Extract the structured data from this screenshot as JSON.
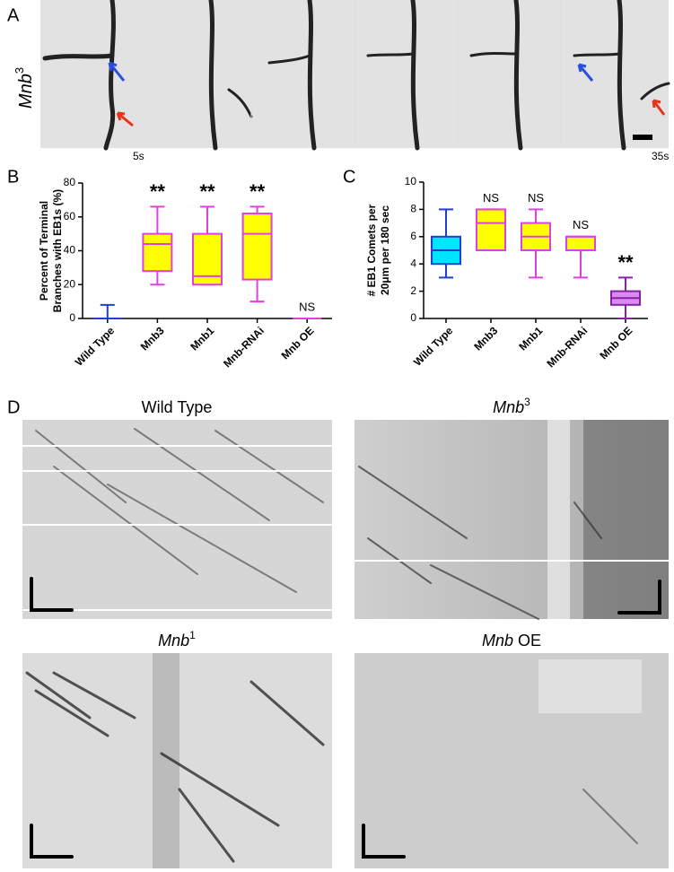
{
  "panels": {
    "a": "A",
    "b": "B",
    "c": "C",
    "d": "D"
  },
  "figure_a": {
    "genotype": "Mnb",
    "genotype_superscript": "3",
    "start_time": "5s",
    "end_time": "35s"
  },
  "chart_data": [
    {
      "type": "box",
      "ylabel_lines": [
        "Percent of Terminal",
        "Branches with EB1s (%)"
      ],
      "categories": [
        "Wild Type",
        "Mnb3",
        "Mnb1",
        "Mnb-RNAi",
        "Mnb OE"
      ],
      "min": [
        0,
        20,
        20,
        10,
        0
      ],
      "q1": [
        0,
        28,
        20,
        23,
        0
      ],
      "median": [
        0,
        44,
        25,
        50,
        0
      ],
      "q3": [
        0,
        50,
        50,
        62,
        0
      ],
      "max": [
        8,
        66,
        66,
        66,
        0
      ],
      "fill_colors": [
        "#00e5ff",
        "#ffff00",
        "#ffff00",
        "#ffff00",
        "#e080f0"
      ],
      "stroke_colors": [
        "#1f3fcf",
        "#e040e0",
        "#e040e0",
        "#e040e0",
        "#e040e0"
      ],
      "annotations": [
        null,
        "**",
        "**",
        "**",
        "NS"
      ],
      "ylim": [
        0,
        80
      ],
      "yticks": [
        0,
        20,
        40,
        60,
        80
      ]
    },
    {
      "type": "box",
      "ylabel_lines": [
        "# EB1 Comets per",
        "20μm per 180 sec"
      ],
      "categories": [
        "Wild Type",
        "Mnb3",
        "Mnb1",
        "Mnb-RNAi",
        "Mnb OE"
      ],
      "min": [
        3,
        5,
        3,
        3,
        0
      ],
      "q1": [
        4,
        5,
        5,
        5,
        1
      ],
      "median": [
        5,
        7,
        6,
        6,
        1.5
      ],
      "q3": [
        6,
        8,
        7,
        6,
        2
      ],
      "max": [
        8,
        8,
        8,
        6,
        3
      ],
      "fill_colors": [
        "#00e5ff",
        "#ffff00",
        "#ffff00",
        "#ffff00",
        "#d88cf0"
      ],
      "stroke_colors": [
        "#1f3fcf",
        "#e040e0",
        "#e040e0",
        "#e040e0",
        "#8a1fa8"
      ],
      "annotations": [
        null,
        "NS",
        "NS",
        "NS",
        "**"
      ],
      "ylim": [
        0,
        10
      ],
      "yticks": [
        0,
        2,
        4,
        6,
        8,
        10
      ]
    }
  ],
  "kymographs": [
    {
      "title": "Wild Type"
    },
    {
      "title_italic": "Mnb",
      "superscript": "3"
    },
    {
      "title_italic": "Mnb",
      "superscript": "1"
    },
    {
      "title_italic": "Mnb",
      "rest": "OE"
    }
  ]
}
